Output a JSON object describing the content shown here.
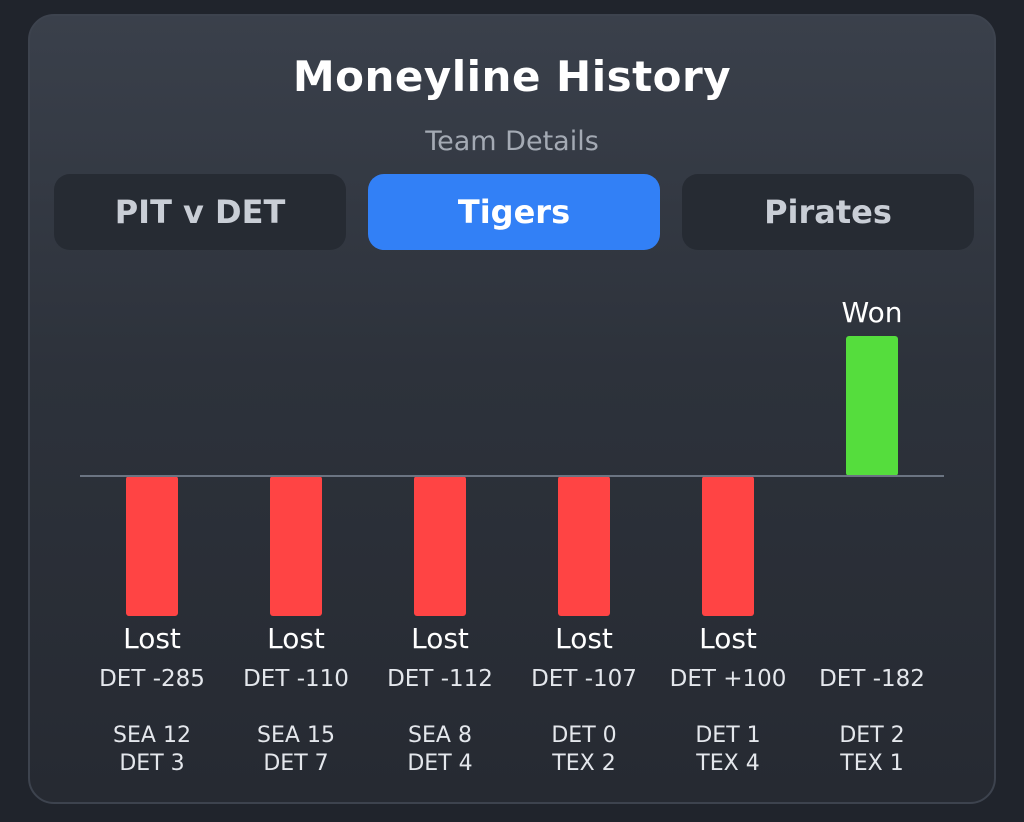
{
  "header": {
    "title": "Moneyline History",
    "subtitle": "Team Details"
  },
  "tabs": [
    {
      "label": "PIT v DET",
      "active": false
    },
    {
      "label": "Tigers",
      "active": true
    },
    {
      "label": "Pirates",
      "active": false
    }
  ],
  "colors": {
    "lost": "#ff4444",
    "won": "#55dd3d",
    "baseline": "#6b7482",
    "tab_active": "#3280f6"
  },
  "chart_data": {
    "type": "bar",
    "categories": [
      "DET -285",
      "DET -110",
      "DET -112",
      "DET -107",
      "DET +100",
      "DET -182"
    ],
    "values": [
      -1,
      -1,
      -1,
      -1,
      -1,
      1
    ],
    "results": [
      "Lost",
      "Lost",
      "Lost",
      "Lost",
      "Lost",
      "Won"
    ],
    "scores": [
      [
        "SEA 12",
        "DET 3"
      ],
      [
        "SEA 15",
        "DET 7"
      ],
      [
        "SEA 8",
        "DET 4"
      ],
      [
        "DET 0",
        "TEX 2"
      ],
      [
        "DET 1",
        "TEX 4"
      ],
      [
        "DET 2",
        "TEX 1"
      ]
    ],
    "ylim": [
      -1,
      1
    ],
    "grid": false
  }
}
